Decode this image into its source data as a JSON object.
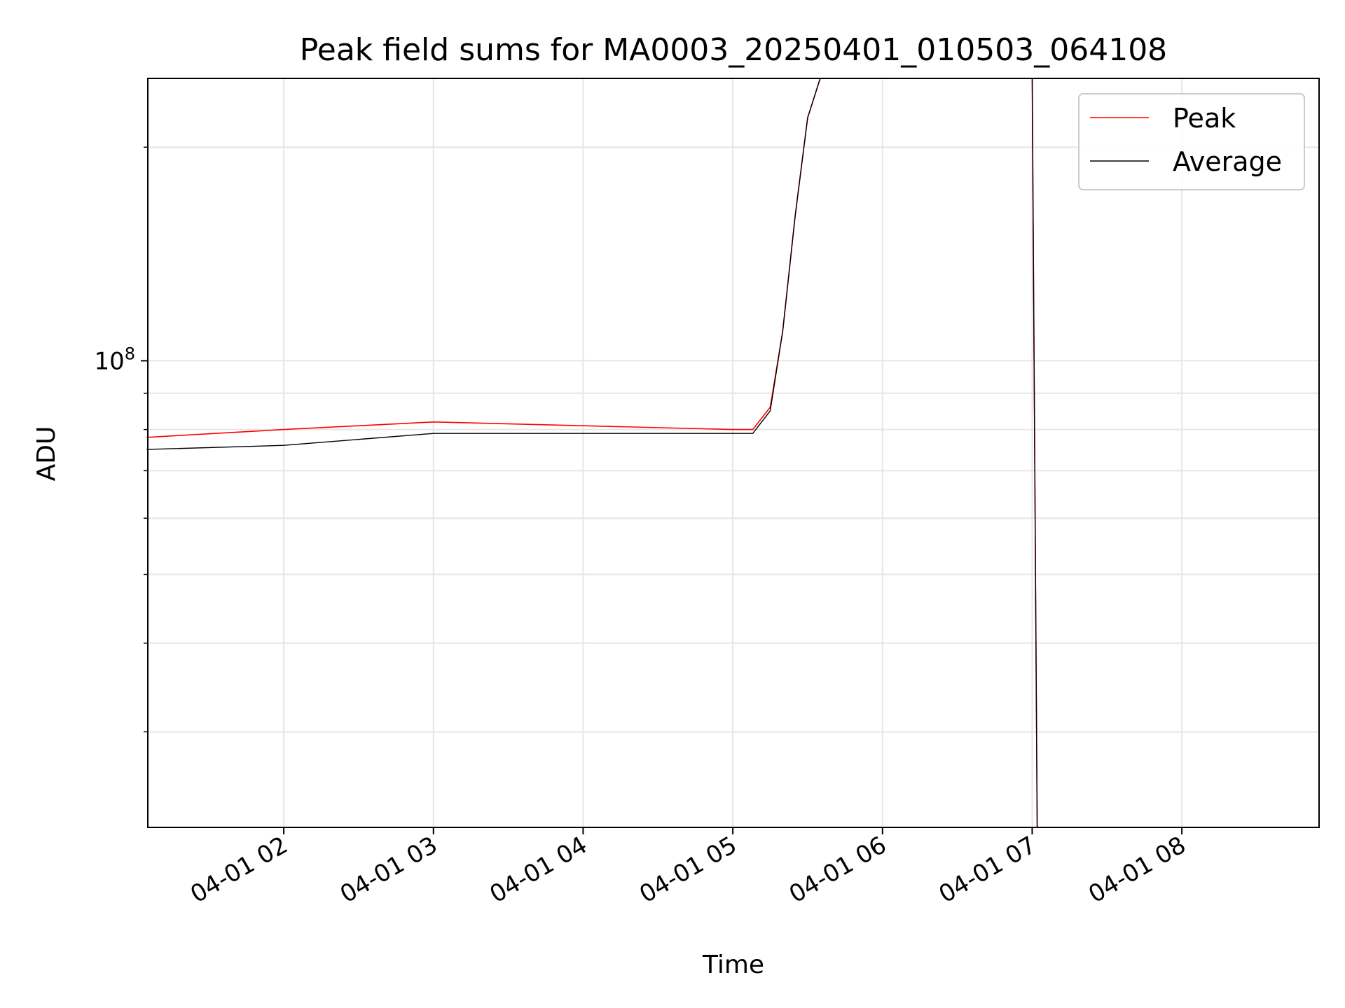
{
  "chart_data": {
    "type": "line",
    "title": "Peak field sums for MA0003_20250401_010503_064108",
    "xlabel": "Time",
    "ylabel": "ADU",
    "y_scale": "log",
    "ylim": [
      22000000,
      250000000
    ],
    "y_major_tick": {
      "value": 100000000,
      "base": "10",
      "exp": "8"
    },
    "y_minor_ticks": [
      30000000,
      40000000,
      50000000,
      60000000,
      70000000,
      80000000,
      90000000,
      200000000
    ],
    "xlim": [
      "2025-04-01 01:05:30",
      "2025-04-01 08:55:00"
    ],
    "x_ticks": [
      {
        "time": "2025-04-01 02:00",
        "label": "04-01 02"
      },
      {
        "time": "2025-04-01 03:00",
        "label": "04-01 03"
      },
      {
        "time": "2025-04-01 04:00",
        "label": "04-01 04"
      },
      {
        "time": "2025-04-01 05:00",
        "label": "04-01 05"
      },
      {
        "time": "2025-04-01 06:00",
        "label": "04-01 06"
      },
      {
        "time": "2025-04-01 07:00",
        "label": "04-01 07"
      },
      {
        "time": "2025-04-01 08:00",
        "label": "04-01 08"
      }
    ],
    "grid": true,
    "legend_position": "upper right",
    "series": [
      {
        "name": "Peak",
        "color": "#ff0000",
        "points": [
          [
            "2025-04-01 01:05",
            78000000
          ],
          [
            "2025-04-01 02:00",
            80000000
          ],
          [
            "2025-04-01 03:00",
            82000000
          ],
          [
            "2025-04-01 04:00",
            81000000
          ],
          [
            "2025-04-01 05:00",
            80000000
          ],
          [
            "2025-04-01 05:08",
            80000000
          ],
          [
            "2025-04-01 05:15",
            86000000
          ],
          [
            "2025-04-01 05:20",
            110000000
          ],
          [
            "2025-04-01 05:25",
            160000000
          ],
          [
            "2025-04-01 05:30",
            220000000
          ],
          [
            "2025-04-01 05:35",
            250000000
          ],
          [
            "2025-04-01 07:00",
            250000000
          ],
          [
            "2025-04-01 07:02",
            22000000
          ],
          [
            "2025-04-01 08:55",
            22000000
          ]
        ]
      },
      {
        "name": "Average",
        "color": "#000000",
        "points": [
          [
            "2025-04-01 01:05",
            75000000
          ],
          [
            "2025-04-01 02:00",
            76000000
          ],
          [
            "2025-04-01 03:00",
            79000000
          ],
          [
            "2025-04-01 04:00",
            79000000
          ],
          [
            "2025-04-01 05:00",
            79000000
          ],
          [
            "2025-04-01 05:08",
            79000000
          ],
          [
            "2025-04-01 05:15",
            85000000
          ],
          [
            "2025-04-01 05:20",
            110000000
          ],
          [
            "2025-04-01 05:25",
            160000000
          ],
          [
            "2025-04-01 05:30",
            220000000
          ],
          [
            "2025-04-01 05:35",
            250000000
          ],
          [
            "2025-04-01 07:00",
            250000000
          ],
          [
            "2025-04-01 07:02",
            22000000
          ],
          [
            "2025-04-01 08:55",
            22000000
          ]
        ]
      }
    ]
  }
}
